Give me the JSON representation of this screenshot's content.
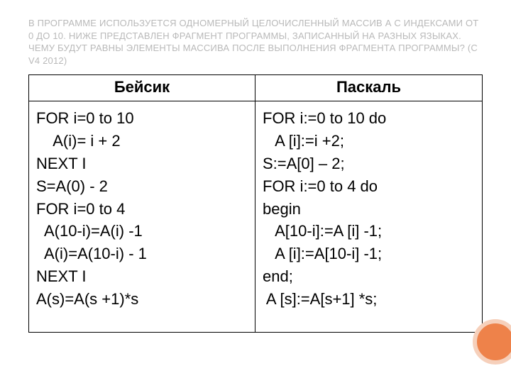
{
  "colors": {
    "title_color": "#b9b9b9",
    "text_color": "#000000",
    "border_color": "#000000",
    "circle_fill": "#ee824a",
    "circle_border": "#f6d0bb",
    "background": "#ffffff"
  },
  "title": {
    "text": "В ПРОГРАММЕ ИСПОЛЬЗУЕТСЯ ОДНОМЕРНЫЙ ЦЕЛОЧИСЛЕННЫЙ МАССИВ А С ИНДЕКСАМИ ОТ 0 ДО 10. НИЖЕ ПРЕДСТАВЛЕН ФРАГМЕНТ ПРОГРАММЫ, ЗАПИСАННЫЙ НА РАЗНЫХ ЯЗЫКАХ. ЧЕМУ БУДУТ РАВНЫ ЭЛЕМЕНТЫ МАССИВА ПОСЛЕ ВЫПОЛНЕНИЯ ФРАГМЕНТА ПРОГРАММЫ?  (С V4 2012)"
  },
  "table": {
    "columns": [
      "Бейсик",
      "Паскаль"
    ],
    "basic_code": "FOR i=0 to 10\n    A(i)= i + 2\nNEXT I\nS=A(0) - 2\nFOR i=0 to 4\n  A(10-i)=A(i) -1\n  A(i)=A(10-i) - 1\nNEXT I\nA(s)=A(s +1)*s",
    "pascal_code": "FOR i:=0 to 10 do\n   A [i]:=i +2;\nS:=A[0] – 2;\nFOR i:=0 to 4 do\nbegin\n   A[10-i]:=A [i] -1;\n   A [i]:=A[10-i] -1;\nend;\n A [s]:=A[s+1] *s;"
  }
}
